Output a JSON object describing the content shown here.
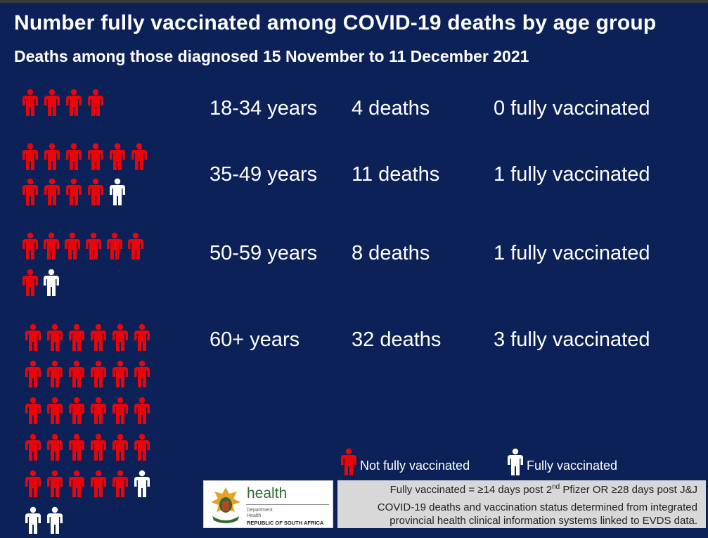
{
  "header": {
    "title": "Number fully vaccinated among COVID-19 deaths by age group",
    "subtitle": "Deaths among those diagnosed 15 November to 11 December 2021"
  },
  "colors": {
    "background": "#0c2158",
    "not_vaccinated": "#e8060b",
    "vaccinated": "#ffffff"
  },
  "chart_data": {
    "type": "table",
    "title": "Number fully vaccinated among COVID-19 deaths by age group",
    "subtitle": "Deaths among those diagnosed 15 November to 11 December 2021",
    "categories": [
      "18-34 years",
      "35-49 years",
      "50-59 years",
      "60+ years"
    ],
    "series": [
      {
        "name": "deaths",
        "values": [
          4,
          11,
          8,
          32
        ]
      },
      {
        "name": "fully vaccinated",
        "values": [
          0,
          1,
          1,
          3
        ]
      }
    ],
    "rows": [
      {
        "age": "18-34 years",
        "deaths": 4,
        "deaths_label": "4 deaths",
        "vaccinated": 0,
        "vaccinated_label": "0 fully vaccinated"
      },
      {
        "age": "35-49 years",
        "deaths": 11,
        "deaths_label": "11 deaths",
        "vaccinated": 1,
        "vaccinated_label": "1 fully vaccinated"
      },
      {
        "age": "50-59 years",
        "deaths": 8,
        "deaths_label": "8 deaths",
        "vaccinated": 1,
        "vaccinated_label": "1 fully vaccinated"
      },
      {
        "age": "60+ years",
        "deaths": 32,
        "deaths_label": "32 deaths",
        "vaccinated": 3,
        "vaccinated_label": "3 fully vaccinated"
      }
    ]
  },
  "legend": {
    "not_vaccinated": "Not fully vaccinated",
    "vaccinated": "Fully vaccinated"
  },
  "logo": {
    "word": "health",
    "dept1": "Department:",
    "dept2": "Health",
    "country": "REPUBLIC OF SOUTH AFRICA"
  },
  "notes": {
    "definition_a": "Fully vaccinated = ≥14 days post 2",
    "definition_sup1": "nd",
    "definition_b": " Pfizer OR ≥28 days post J&J",
    "source_line1": "COVID-19 deaths and vaccination status determined from integrated",
    "source_line2": "provincial health clinical information systems linked to EVDS data."
  }
}
